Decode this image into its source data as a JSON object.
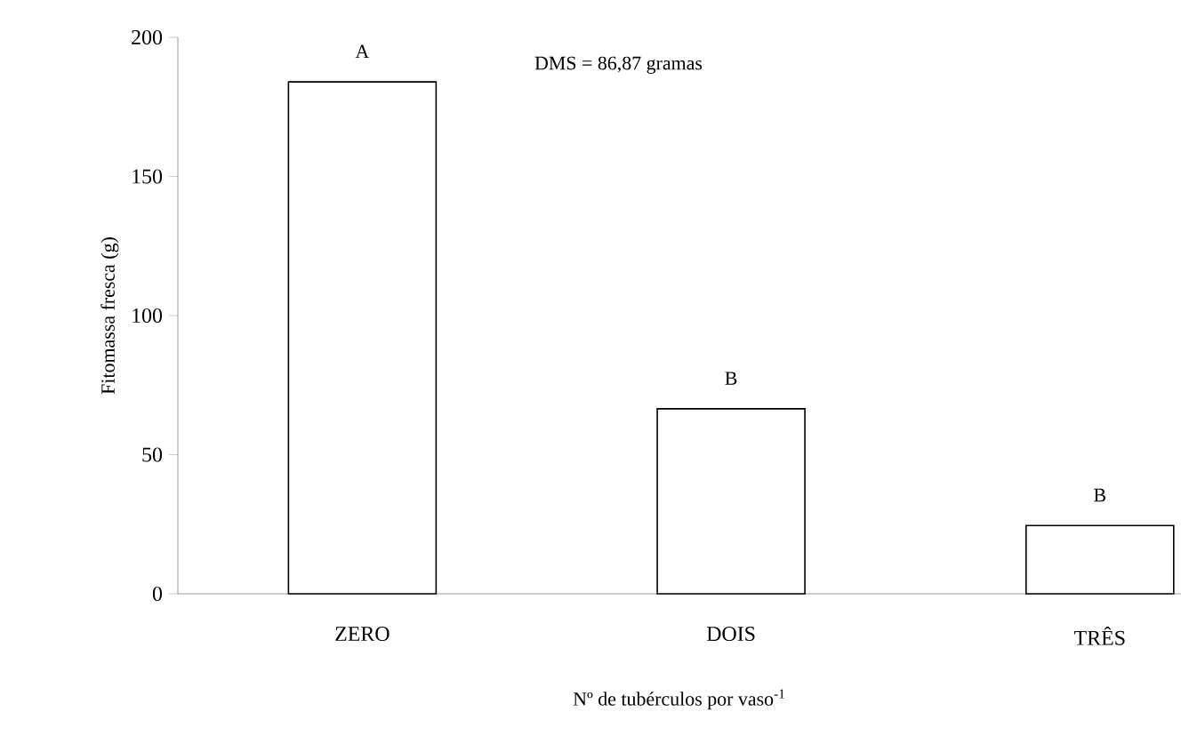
{
  "chart_data": {
    "type": "bar",
    "ylabel": "Fitomassa fresca (g)",
    "xlabel": "Nº de tubérculos por vaso$^{-1}$",
    "categories": [
      "ZERO",
      "DOIS",
      "TRÊS"
    ],
    "values": [
      184,
      66.5,
      24.5
    ],
    "color": "#ffffff",
    "ylim": [
      0,
      200
    ],
    "yticks": [
      0,
      50,
      100,
      150,
      200
    ],
    "annotations": [
      {
        "text": "A",
        "x": "ZERO",
        "y": 184
      },
      {
        "text": "B",
        "x": "DOIS",
        "y": 66.5
      },
      {
        "text": "B",
        "x": "TRÊS",
        "y": 24.5
      },
      "DMS = 86,87 gramas"
    ]
  }
}
